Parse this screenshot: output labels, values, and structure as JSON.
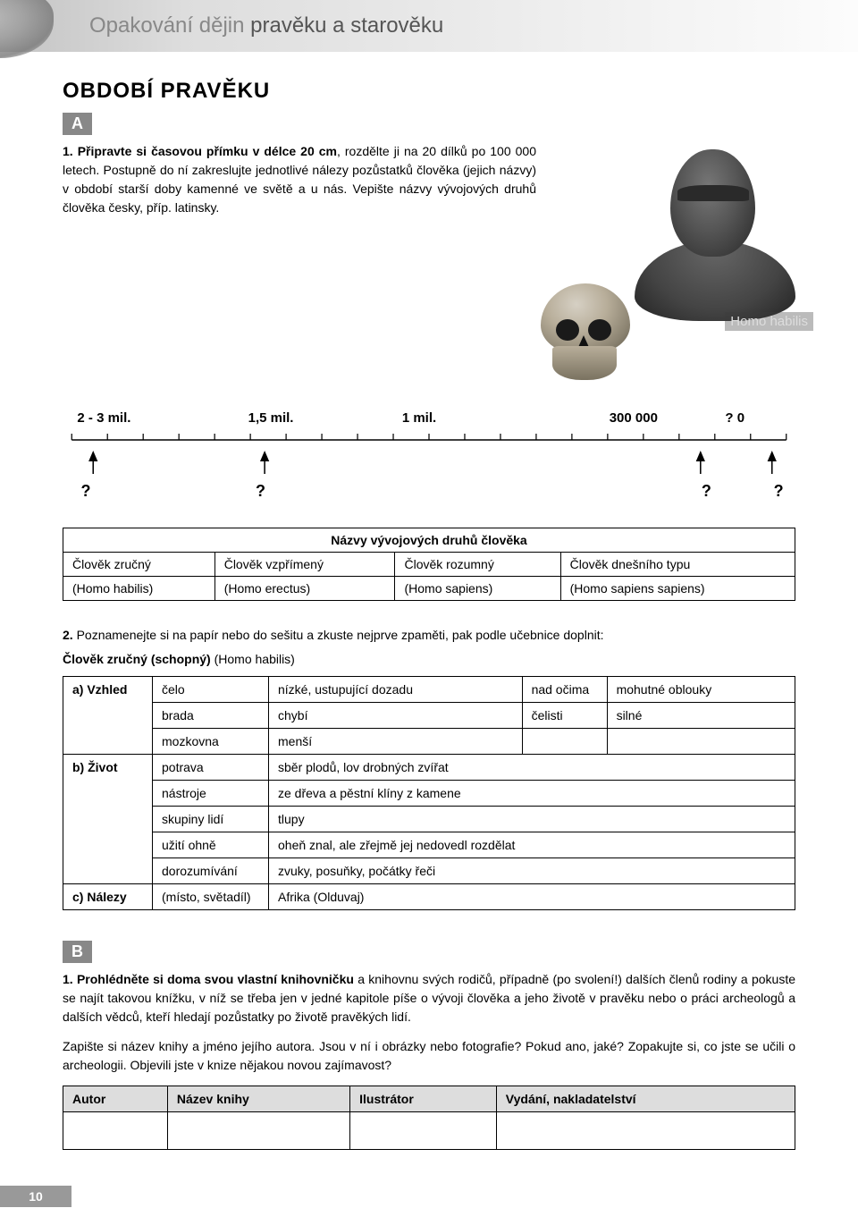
{
  "header": {
    "title_light": "Opakování dějin ",
    "title_dark": "pravěku a starověku"
  },
  "main_title": "OBDOBÍ PRAVĚKU",
  "section_a": "A",
  "task1": {
    "num": "1. ",
    "bold": "Připravte si časovou přímku v délce 20 cm",
    "rest1": ", rozdělte ji na 20 dílků po 100 000 letech. Postupně do ní zakreslujte jednotlivé nálezy pozůstatků člověka (jejich názvy) v období starší doby kamenné ve světě a u nás. Vepište názvy vývojových druhů člověka česky, příp. latinsky."
  },
  "figure_caption": "Homo habilis",
  "timeline": {
    "top": [
      "2 - 3 mil.",
      "1,5 mil.",
      "1 mil.",
      "300 000",
      "?  0"
    ],
    "top_pos_pct": [
      2,
      27,
      49,
      78,
      93.5
    ],
    "arrow_pos_pct": [
      3,
      27,
      88,
      98
    ],
    "bot": [
      "?",
      "?",
      "?",
      "?"
    ],
    "bot_pos_pct": [
      2.5,
      26.5,
      87.5,
      97.5
    ],
    "ticks": 20,
    "line_color": "#000"
  },
  "names_table": {
    "title": "Názvy vývojových druhů člověka",
    "row1": [
      "Člověk zručný",
      "Člověk vzpřímený",
      "Člověk rozumný",
      "Člověk dnešního typu"
    ],
    "row2": [
      "(Homo habilis)",
      "(Homo erectus)",
      "(Homo sapiens)",
      "(Homo sapiens sapiens)"
    ]
  },
  "task2": {
    "num": "2. ",
    "text": "Poznamenejte si na papír nebo do sešitu a zkuste nejprve zpaměti, pak podle učebnice doplnit:",
    "subtitle_bold": "Člověk zručný (schopný) ",
    "subtitle_paren": "(Homo habilis)"
  },
  "char_table": {
    "rows": [
      {
        "lbl": "a) Vzhled",
        "attr": "čelo",
        "val": "nízké, ustupující dozadu",
        "nad": "nad očima",
        "nadval": "mohutné oblouky"
      },
      {
        "lbl": "",
        "attr": "brada",
        "val": "chybí",
        "nad": "čelisti",
        "nadval": "silné"
      },
      {
        "lbl": "",
        "attr": "mozkovna",
        "val": "menší",
        "nad": "",
        "nadval": ""
      },
      {
        "lbl": "b) Život",
        "attr": "potrava",
        "val": "sběr plodů, lov drobných zvířat",
        "colspan": true
      },
      {
        "lbl": "",
        "attr": "nástroje",
        "val": "ze dřeva a pěstní klíny z kamene",
        "colspan": true
      },
      {
        "lbl": "",
        "attr": "skupiny lidí",
        "val": "tlupy",
        "colspan": true
      },
      {
        "lbl": "",
        "attr": "užití ohně",
        "val": "oheň znal, ale zřejmě jej nedovedl rozdělat",
        "colspan": true
      },
      {
        "lbl": "",
        "attr": "dorozumívání",
        "val": "zvuky, posuňky, počátky řeči",
        "colspan": true
      },
      {
        "lbl": "c) Nálezy",
        "attr": "(místo, světadíl)",
        "val": "Afrika (Olduvaj)",
        "colspan": true
      }
    ]
  },
  "section_b": "B",
  "taskb1": {
    "num": "1. ",
    "bold": "Prohlédněte si doma svou vlastní knihovničku",
    "rest": " a knihovnu svých rodičů, případně (po svolení!) dalších členů rodiny a pokuste se najít takovou knížku, v níž se třeba jen v jedné kapitole píše o vývoji člověka a jeho životě v pravěku nebo o práci archeologů a dalších vědců, kteří hledají pozůstatky po životě pravěkých lidí.",
    "para2": "Zapište si název knihy a jméno jejího autora. Jsou v ní i obrázky nebo fotografie? Pokud ano, jaké? Zopakujte si, co jste se učili o archeologii. Objevili jste v knize nějakou novou zajímavost?"
  },
  "book_table": {
    "headers": [
      "Autor",
      "Název knihy",
      "Ilustrátor",
      "Vydání, nakladatelství"
    ]
  },
  "page_number": "10"
}
